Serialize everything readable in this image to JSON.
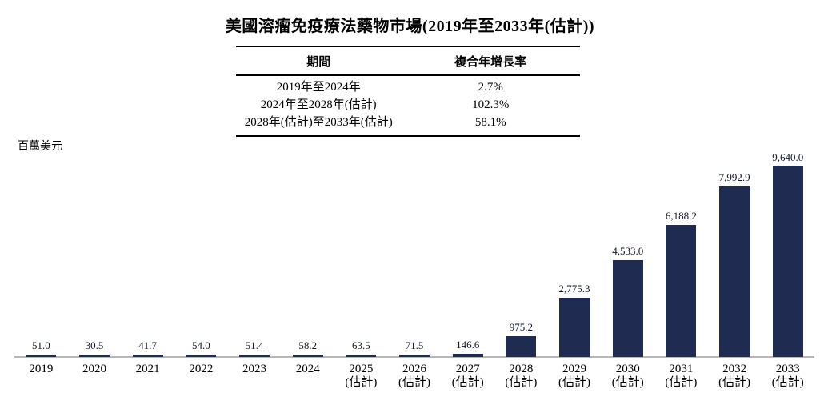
{
  "title": "美國溶瘤免疫療法藥物市場(2019年至2033年(估計))",
  "table": {
    "headers": [
      "期間",
      "複合年增長率"
    ],
    "rows": [
      [
        "2019年至2024年",
        "2.7%"
      ],
      [
        "2024年至2028年(估計)",
        "102.3%"
      ],
      [
        "2028年(估計)至2033年(估計)",
        "58.1%"
      ]
    ]
  },
  "chart_data": {
    "type": "bar",
    "title": "美國溶瘤免疫療法藥物市場(2019年至2033年(估計))",
    "ylabel": "百萬美元",
    "xlabel": "",
    "categories": [
      [
        "2019"
      ],
      [
        "2020"
      ],
      [
        "2021"
      ],
      [
        "2022"
      ],
      [
        "2023"
      ],
      [
        "2024"
      ],
      [
        "2025",
        "(估計)"
      ],
      [
        "2026",
        "(估計)"
      ],
      [
        "2027",
        "(估計)"
      ],
      [
        "2028",
        "(估計)"
      ],
      [
        "2029",
        "(估計)"
      ],
      [
        "2030",
        "(估計)"
      ],
      [
        "2031",
        "(估計)"
      ],
      [
        "2032",
        "(估計)"
      ],
      [
        "2033",
        "(估計)"
      ]
    ],
    "values": [
      51.0,
      30.5,
      41.7,
      54.0,
      51.4,
      58.2,
      63.5,
      71.5,
      146.6,
      975.2,
      2775.3,
      4533.0,
      6188.2,
      7992.9,
      9640.0
    ],
    "value_labels": [
      "51.0",
      "30.5",
      "41.7",
      "54.0",
      "51.4",
      "58.2",
      "63.5",
      "71.5",
      "146.6",
      "975.2",
      "2,775.3",
      "4,533.0",
      "6,188.2",
      "7,992.9",
      "9,640.0"
    ],
    "ylim": [
      0,
      9640
    ],
    "grid": false,
    "legend": false,
    "bar_color": "#1f2b50",
    "baseline_color": "#b8b8b8"
  }
}
